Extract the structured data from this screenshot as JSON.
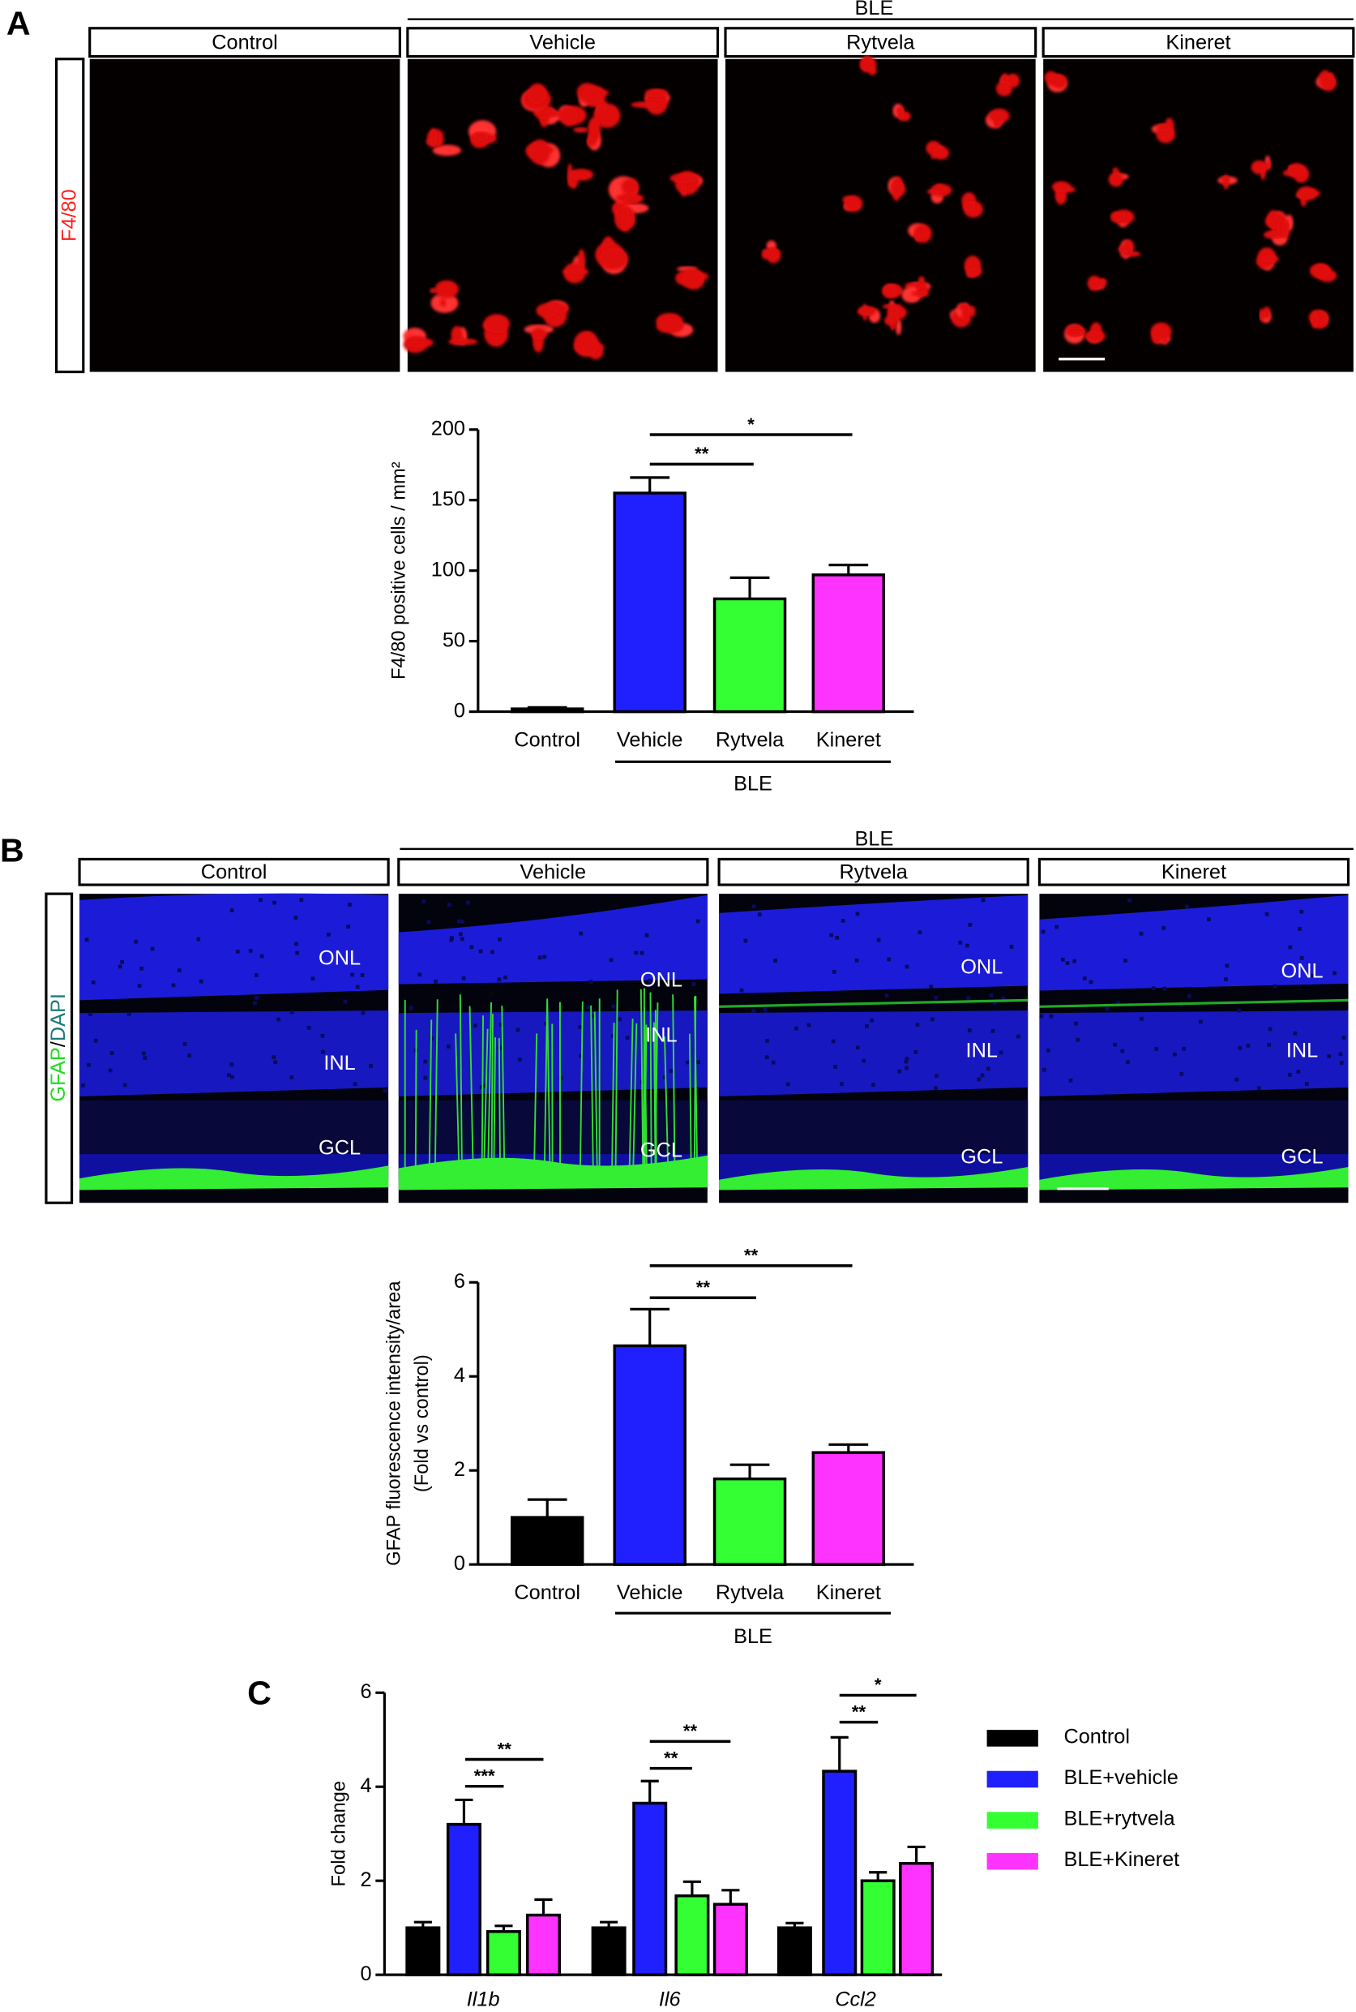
{
  "panel_a": {
    "letter": "A",
    "group": "BLE",
    "stain": "F4/80",
    "columns": [
      "Control",
      "Vehicle",
      "Rytvela",
      "Kineret"
    ]
  },
  "panel_b": {
    "letter": "B",
    "group": "BLE",
    "stain": [
      "GFAP",
      "/",
      "DAPI"
    ],
    "columns": [
      "Control",
      "Vehicle",
      "Rytvela",
      "Kineret"
    ],
    "layers": [
      [
        "ONL",
        "INL",
        "GCL"
      ],
      [
        "ONL",
        "INL",
        "GCL"
      ],
      [
        "ONL",
        "INL",
        "GCL"
      ],
      [
        "ONL",
        "INL",
        "GCL"
      ]
    ]
  },
  "panel_c": {
    "letter": "C"
  },
  "chart_data": [
    {
      "type": "bar",
      "ylabel": [
        "F4/80 positive cells / mm²"
      ],
      "categories": [
        "Control",
        "Vehicle",
        "Rytvela",
        "Kineret"
      ],
      "values": [
        2,
        155,
        80,
        97
      ],
      "errors": [
        1,
        11,
        15,
        7
      ],
      "colors": [
        "#000000",
        "#2020ff",
        "#33ff33",
        "#ff33ff"
      ],
      "ylim": [
        0,
        200
      ],
      "yticks": [
        0,
        50,
        100,
        150,
        200
      ],
      "group_label": "BLE",
      "annotations": [
        "**",
        "*"
      ]
    },
    {
      "type": "bar",
      "ylabel": [
        "GFAP fluorescence intensity/area",
        "(Fold vs control)"
      ],
      "categories": [
        "Control",
        "Vehicle",
        "Rytvela",
        "Kineret"
      ],
      "values": [
        1.0,
        4.65,
        1.82,
        2.38
      ],
      "errors": [
        0.38,
        0.78,
        0.3,
        0.17
      ],
      "colors": [
        "#000000",
        "#2020ff",
        "#33ff33",
        "#ff33ff"
      ],
      "ylim": [
        0,
        6
      ],
      "yticks": [
        0,
        2,
        4,
        6
      ],
      "group_label": "BLE",
      "annotations": [
        "**",
        "**"
      ]
    },
    {
      "type": "grouped_bar",
      "ylabel": [
        "Fold change"
      ],
      "categories": [
        "Il1b",
        "Il6",
        "Ccl2"
      ],
      "legend": "right",
      "series": [
        {
          "name": "Control",
          "color": "#000000",
          "values": [
            1.0,
            1.0,
            1.0
          ],
          "errors": [
            0.12,
            0.12,
            0.1
          ]
        },
        {
          "name": "BLE+vehicle",
          "color": "#2020ff",
          "values": [
            3.2,
            3.65,
            4.33
          ],
          "errors": [
            0.52,
            0.47,
            0.72
          ]
        },
        {
          "name": "BLE+rytvela",
          "color": "#33ff33",
          "values": [
            0.92,
            1.68,
            2.0
          ],
          "errors": [
            0.12,
            0.3,
            0.18
          ]
        },
        {
          "name": "BLE+Kineret",
          "color": "#ff33ff",
          "values": [
            1.27,
            1.5,
            2.37
          ],
          "errors": [
            0.33,
            0.3,
            0.35
          ]
        }
      ],
      "ylim": [
        0,
        6
      ],
      "yticks": [
        0,
        2,
        4,
        6
      ],
      "annotations": [
        "***",
        "**",
        "**",
        "**",
        "**",
        "*"
      ]
    }
  ]
}
